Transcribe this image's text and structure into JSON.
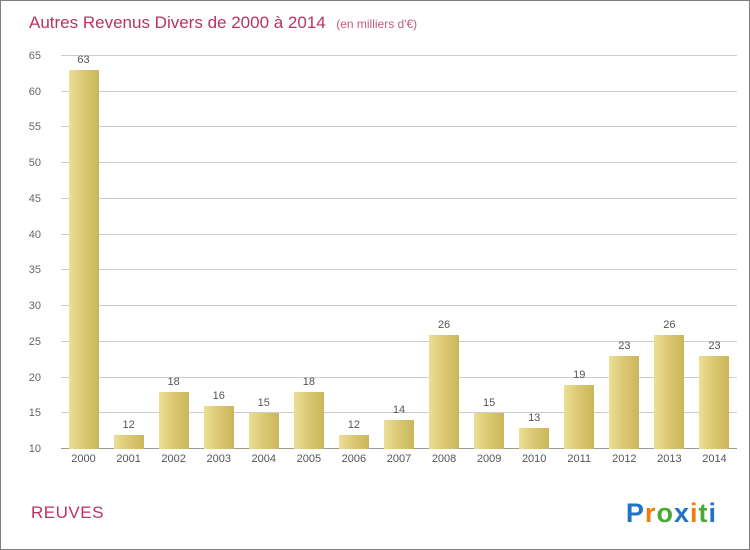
{
  "header": {
    "title": "Autres Revenus Divers de 2000 à 2014",
    "subtitle": "(en milliers d'€)"
  },
  "footer": {
    "location": "REUVES",
    "logo_letters": [
      {
        "ch": "P",
        "color": "#2273c4"
      },
      {
        "ch": "r",
        "color": "#f07c0c"
      },
      {
        "ch": "o",
        "color": "#4aa834"
      },
      {
        "ch": "x",
        "color": "#2273c4"
      },
      {
        "ch": "i",
        "color": "#f07c0c"
      },
      {
        "ch": "t",
        "color": "#4aa834"
      },
      {
        "ch": "i",
        "color": "#2273c4"
      }
    ]
  },
  "colors": {
    "title": "#b93265",
    "bar_light": "#ecdf96",
    "bar_dark": "#cbb65a",
    "gridline": "#cccccc",
    "axis_text": "#555555"
  },
  "chart_data": {
    "type": "bar",
    "title": "Autres Revenus Divers de 2000 à 2014",
    "subtitle": "(en milliers d'€)",
    "categories": [
      "2000",
      "2001",
      "2002",
      "2003",
      "2004",
      "2005",
      "2006",
      "2007",
      "2008",
      "2009",
      "2010",
      "2011",
      "2012",
      "2013",
      "2014"
    ],
    "values": [
      63,
      12,
      18,
      16,
      15,
      18,
      12,
      14,
      26,
      15,
      13,
      19,
      23,
      26,
      23
    ],
    "xlabel": "",
    "ylabel": "",
    "ylim": [
      10,
      65
    ],
    "ytick_step": 5,
    "grid": true,
    "legend": false
  }
}
